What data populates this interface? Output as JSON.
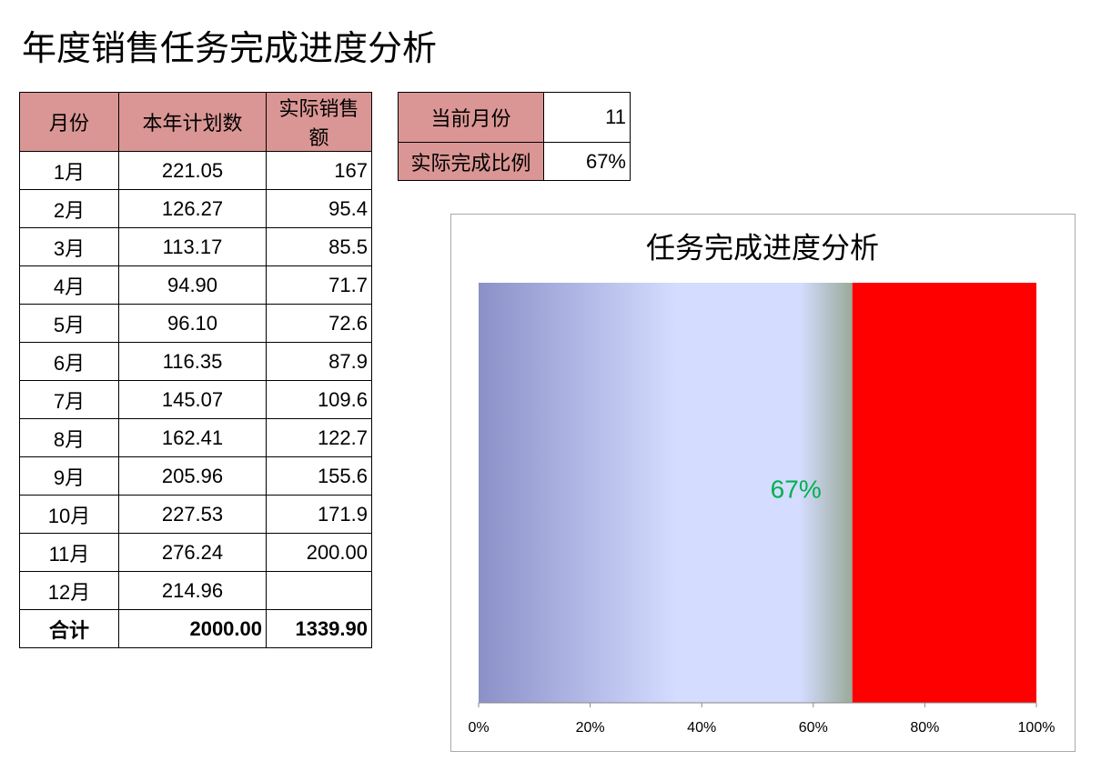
{
  "title": "年度销售任务完成进度分析",
  "table": {
    "header": [
      "月份",
      "本年计划数",
      "实际销售额"
    ],
    "rows": [
      [
        "1月",
        "221.05",
        "167"
      ],
      [
        "2月",
        "126.27",
        "95.4"
      ],
      [
        "3月",
        "113.17",
        "85.5"
      ],
      [
        "4月",
        "94.90",
        "71.7"
      ],
      [
        "5月",
        "96.10",
        "72.6"
      ],
      [
        "6月",
        "116.35",
        "87.9"
      ],
      [
        "7月",
        "145.07",
        "109.6"
      ],
      [
        "8月",
        "162.41",
        "122.7"
      ],
      [
        "9月",
        "205.96",
        "155.6"
      ],
      [
        "10月",
        "227.53",
        "171.9"
      ],
      [
        "11月",
        "276.24",
        "200.00"
      ],
      [
        "12月",
        "214.96",
        null
      ]
    ],
    "total": [
      "合计",
      "2000.00",
      "1339.90"
    ]
  },
  "info": {
    "rows": [
      [
        "当前月份",
        "11"
      ],
      [
        "实际完成比例",
        "67%"
      ]
    ]
  },
  "chart_data": {
    "type": "stacked_barh",
    "title": "任务完成进度分析",
    "categories": [
      null
    ],
    "series": [
      {
        "color": "#8b90c8",
        "values": [
          67
        ],
        "value_labels": [
          "67%"
        ]
      },
      {
        "color": "#ff0000",
        "values": [
          33
        ]
      }
    ],
    "xlim": [
      0,
      100
    ],
    "xticks": [
      {
        "value": 0,
        "label": "0%"
      },
      {
        "value": 20,
        "label": "20%"
      },
      {
        "value": 40,
        "label": "40%"
      },
      {
        "value": 60,
        "label": "60%"
      },
      {
        "value": 80,
        "label": "80%"
      },
      {
        "value": 100,
        "label": "100%"
      }
    ]
  }
}
